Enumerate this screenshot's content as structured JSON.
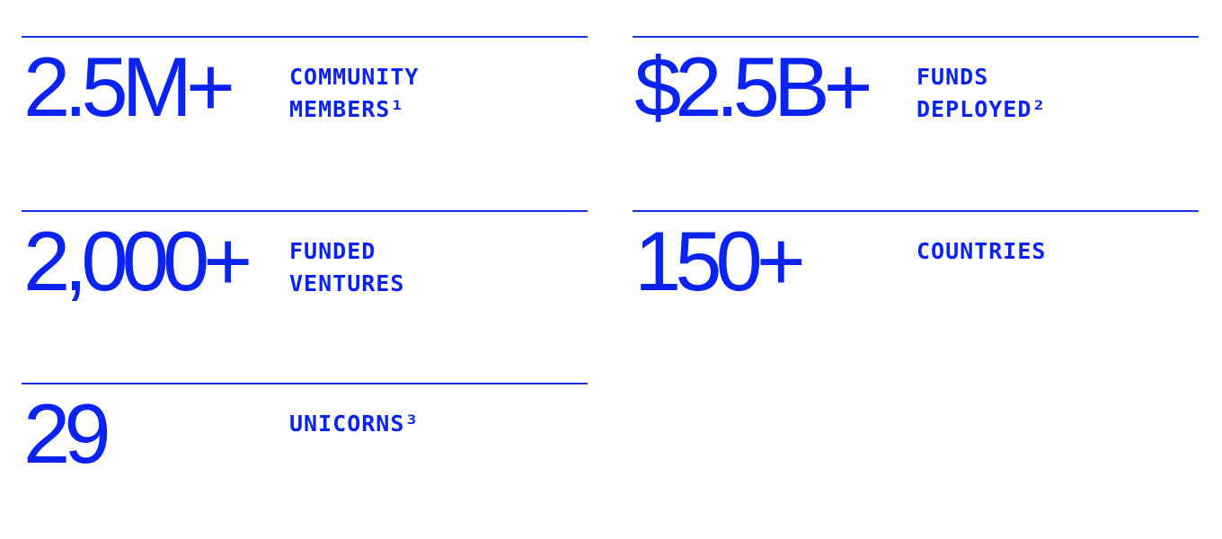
{
  "stats": [
    {
      "value": "2.5M+",
      "label_line1": "COMMUNITY",
      "label_line2": "MEMBERS¹"
    },
    {
      "value": "$2.5B+",
      "label_line1": "FUNDS",
      "label_line2": "DEPLOYED²"
    },
    {
      "value": "2,000+",
      "label_line1": "FUNDED",
      "label_line2": "VENTURES"
    },
    {
      "value": "150+",
      "label_line1": "COUNTRIES",
      "label_line2": ""
    },
    {
      "value": "29",
      "label_line1": "UNICORNS³",
      "label_line2": ""
    }
  ],
  "colors": {
    "accent": "#0a23f0",
    "rule": "#1530e6",
    "background": "#ffffff"
  }
}
